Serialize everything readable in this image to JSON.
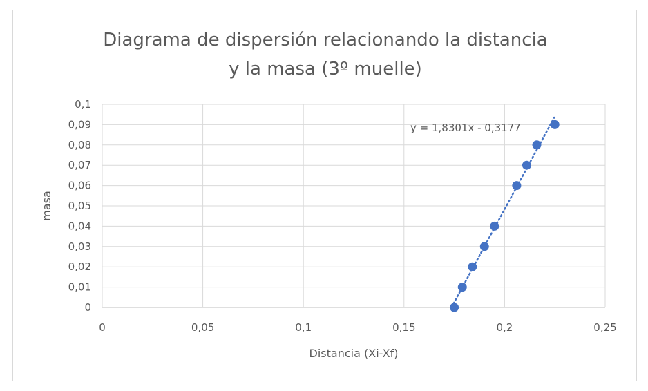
{
  "chart_data": {
    "type": "scatter",
    "title_lines": [
      "Diagrama de dispersión relacionando la distancia",
      "y la masa (3º muelle)"
    ],
    "xlabel": "Distancia (Xi-Xf)",
    "ylabel": "masa",
    "xlim": [
      0,
      0.25
    ],
    "ylim": [
      0,
      0.1
    ],
    "x_ticks": [
      "0",
      "0,05",
      "0,1",
      "0,15",
      "0,2",
      "0,25"
    ],
    "y_ticks": [
      "0",
      "0,01",
      "0,02",
      "0,03",
      "0,04",
      "0,05",
      "0,06",
      "0,07",
      "0,08",
      "0,09",
      "0,1"
    ],
    "grid": true,
    "legend": "none",
    "series": [
      {
        "x": [
          0.175,
          0.179,
          0.184,
          0.19,
          0.195,
          0.206,
          0.211,
          0.216,
          0.225
        ],
        "y": [
          0.0,
          0.01,
          0.02,
          0.03,
          0.04,
          0.06,
          0.07,
          0.08,
          0.09
        ],
        "color": "#4472c4"
      }
    ],
    "trendline": {
      "type": "linear",
      "slope": 1.8301,
      "intercept": -0.3177,
      "style": "dotted",
      "color": "#4472c4",
      "equation_label": "y = 1,8301x - 0,3177",
      "x_range": [
        0.1736,
        0.2247
      ]
    }
  }
}
